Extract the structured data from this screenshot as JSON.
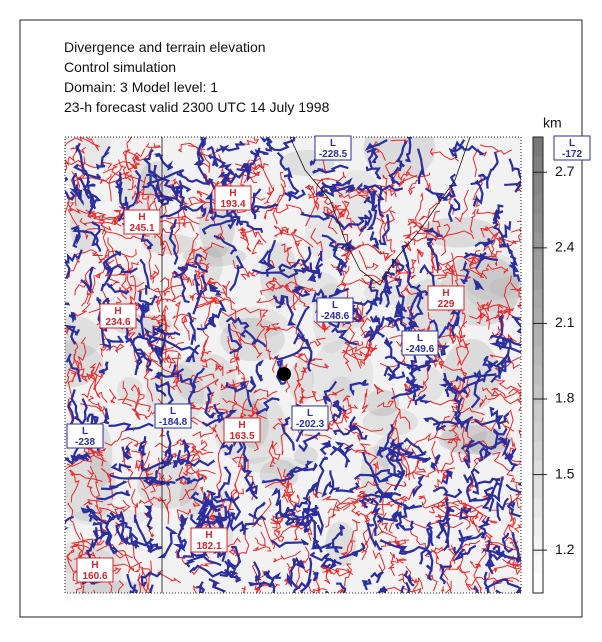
{
  "title_lines": [
    "Divergence and terrain elevation",
    "Control simulation",
    "Domain: 3   Model level: 1",
    "23-h forecast valid 2300 UTC 14 July 1998"
  ],
  "colorbar": {
    "unit": "km",
    "range": [
      1.03,
      2.84
    ],
    "ticks": [
      1.2,
      1.5,
      1.8,
      2.1,
      2.4,
      2.7
    ]
  },
  "centers": [
    {
      "kind": "L",
      "value": -228.5
    },
    {
      "kind": "L",
      "value": -172
    },
    {
      "kind": "H",
      "value": 193.4
    },
    {
      "kind": "H",
      "value": 245.1
    },
    {
      "kind": "H",
      "value": 234.6
    },
    {
      "kind": "L",
      "value": -248.6
    },
    {
      "kind": "H",
      "value": 229
    },
    {
      "kind": "L",
      "value": -249.6
    },
    {
      "kind": "L",
      "value": -184.8
    },
    {
      "kind": "H",
      "value": 163.5
    },
    {
      "kind": "L",
      "value": -202.3
    },
    {
      "kind": "L",
      "value": -238
    },
    {
      "kind": "H",
      "value": 182.1
    },
    {
      "kind": "H",
      "value": 160.6
    }
  ]
}
